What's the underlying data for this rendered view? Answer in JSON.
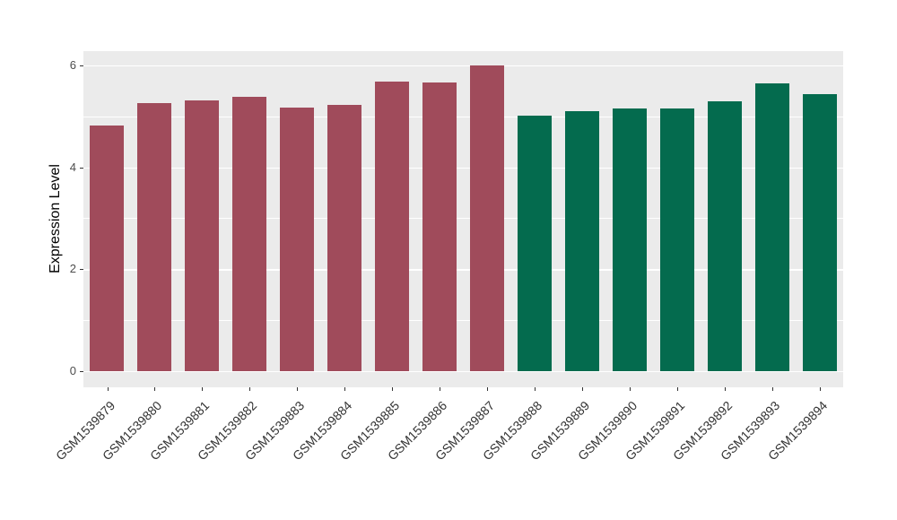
{
  "chart_data": {
    "type": "bar",
    "title": "",
    "xlabel": "",
    "ylabel": "Expression Level",
    "categories": [
      "GSM1539879",
      "GSM1539880",
      "GSM1539881",
      "GSM1539882",
      "GSM1539883",
      "GSM1539884",
      "GSM1539885",
      "GSM1539886",
      "GSM1539887",
      "GSM1539888",
      "GSM1539889",
      "GSM1539890",
      "GSM1539891",
      "GSM1539892",
      "GSM1539893",
      "GSM1539894"
    ],
    "values": [
      4.82,
      5.26,
      5.32,
      5.38,
      5.18,
      5.22,
      5.68,
      5.66,
      6.0,
      5.01,
      5.1,
      5.15,
      5.15,
      5.29,
      5.64,
      5.44
    ],
    "bar_colors": [
      "#A04B5B",
      "#A04B5B",
      "#A04B5B",
      "#A04B5B",
      "#A04B5B",
      "#A04B5B",
      "#A04B5B",
      "#A04B5B",
      "#A04B5B",
      "#046B4E",
      "#046B4E",
      "#046B4E",
      "#046B4E",
      "#046B4E",
      "#046B4E",
      "#046B4E"
    ],
    "group_colors": {
      "group1": "#A04B5B",
      "group2": "#046B4E"
    },
    "ytick_values": [
      0,
      2,
      4,
      6
    ],
    "ytick_labels": [
      "0",
      "2",
      "4",
      "6"
    ],
    "yminor_values": [
      1,
      3,
      5
    ],
    "y_axis": {
      "min": -0.32,
      "max": 6.28
    },
    "ylim": [
      0,
      6
    ],
    "grid": "on",
    "legend": "none",
    "panel_bg": "#EBEBEB",
    "grid_color": "#FFFFFF"
  }
}
